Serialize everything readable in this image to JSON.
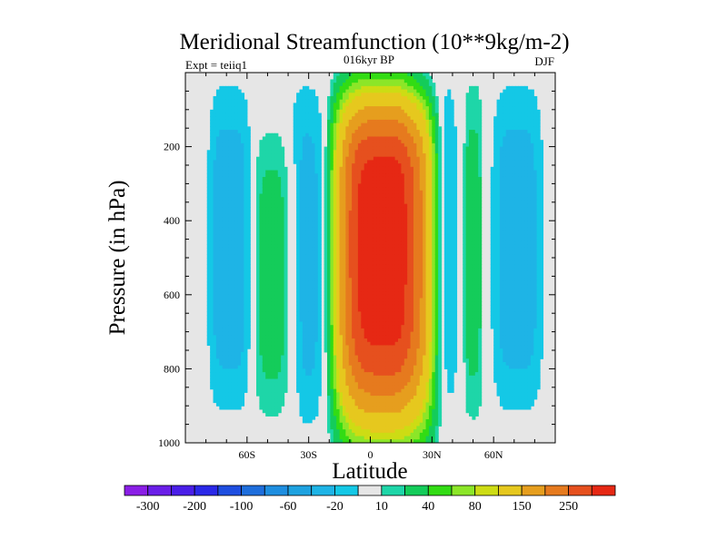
{
  "chart_data": {
    "type": "contour",
    "title": "Meridional Streamfunction (10**9kg/m-2)",
    "subtitle_left": "Expt = teiiq1",
    "subtitle_center": "016kyr BP",
    "subtitle_right": "DJF",
    "xlabel": "Latitude",
    "ylabel": "Pressure (in hPa)",
    "xlim": [
      -90,
      90
    ],
    "ylim": [
      1000,
      0
    ],
    "x_ticks": [
      {
        "value": -60,
        "label": "60S"
      },
      {
        "value": -30,
        "label": "30S"
      },
      {
        "value": 0,
        "label": "0"
      },
      {
        "value": 30,
        "label": "30N"
      },
      {
        "value": 60,
        "label": "60N"
      }
    ],
    "y_ticks": [
      {
        "value": 200,
        "label": "200"
      },
      {
        "value": 400,
        "label": "400"
      },
      {
        "value": 600,
        "label": "600"
      },
      {
        "value": 800,
        "label": "800"
      },
      {
        "value": 1000,
        "label": "1000"
      }
    ],
    "background_color": "#e6e6e6",
    "contour_levels": [
      -300,
      -250,
      -200,
      -150,
      -100,
      -80,
      -60,
      -40,
      -20,
      -10,
      10,
      20,
      40,
      60,
      80,
      100,
      150,
      200,
      250,
      300
    ],
    "colorbar": {
      "colors": [
        "#8a1ee6",
        "#6a1ee8",
        "#4a1ee8",
        "#2a28e8",
        "#1e4ee0",
        "#1e6edc",
        "#1e8ee0",
        "#1ea2e0",
        "#1eb4e6",
        "#14c8e6",
        "#e6e6e6",
        "#1ed6a8",
        "#14cc5a",
        "#32dc14",
        "#8ce628",
        "#cddc14",
        "#e6c81e",
        "#e69e1e",
        "#e67a1e",
        "#e6501e",
        "#e62814"
      ],
      "labels": [
        "-300",
        "-200",
        "-100",
        "-60",
        "-20",
        "10",
        "40",
        "80",
        "150",
        "250"
      ]
    },
    "field_description": "Positive cell centered just north of the equator, peak >250 near 450 hPa; positive (10–20) bands near 45S and 50N; negative (-10 to -40) bands near 65S, 25S, 20N and 75N.",
    "features": [
      {
        "sign": "positive",
        "lat_range": [
          -18,
          33
        ],
        "p_range": [
          40,
          985
        ],
        "max_value": 250,
        "core_lat": 8,
        "core_p": 450
      },
      {
        "sign": "positive",
        "lat_range": [
          -58,
          -34
        ],
        "p_range": [
          130,
          960
        ],
        "max_value": 20
      },
      {
        "sign": "positive",
        "lat_range": [
          45,
          55
        ],
        "p_range": [
          0,
          970
        ],
        "max_value": 20
      },
      {
        "sign": "negative",
        "lat_range": [
          -80,
          -57
        ],
        "p_range": [
          0,
          950
        ],
        "min_value": -20
      },
      {
        "sign": "negative",
        "lat_range": [
          -42,
          -18
        ],
        "p_range": [
          0,
          990
        ],
        "min_value": -20
      },
      {
        "sign": "negative",
        "lat_range": [
          15,
          42
        ],
        "p_range": [
          0,
          960
        ],
        "min_value": -40
      },
      {
        "sign": "negative",
        "lat_range": [
          58,
          85
        ],
        "p_range": [
          0,
          950
        ],
        "min_value": -20
      }
    ]
  }
}
